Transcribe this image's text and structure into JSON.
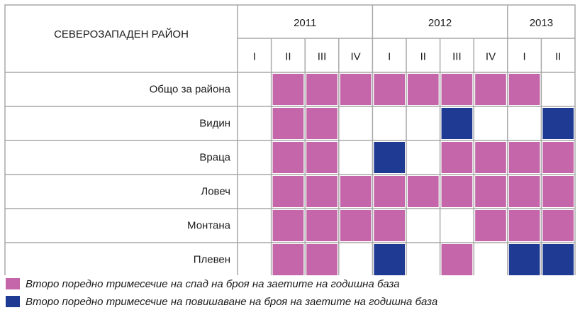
{
  "chart_data": {
    "type": "heatmap",
    "title": "",
    "corner_label": "СЕВЕРОЗАПАДЕН РАЙОН",
    "years": [
      {
        "label": "2011",
        "span": 4
      },
      {
        "label": "2012",
        "span": 4
      },
      {
        "label": "2013",
        "span": 2
      }
    ],
    "quarters": [
      "I",
      "II",
      "III",
      "IV",
      "I",
      "II",
      "III",
      "IV",
      "I",
      "II"
    ],
    "rows": [
      {
        "label": "Общо за района",
        "values": [
          0,
          1,
          1,
          1,
          1,
          1,
          1,
          1,
          1,
          0
        ]
      },
      {
        "label": "Видин",
        "values": [
          0,
          1,
          1,
          0,
          0,
          0,
          2,
          0,
          0,
          2
        ]
      },
      {
        "label": "Враца",
        "values": [
          0,
          1,
          1,
          0,
          2,
          0,
          1,
          1,
          1,
          1
        ]
      },
      {
        "label": "Ловеч",
        "values": [
          0,
          1,
          1,
          1,
          1,
          1,
          1,
          1,
          1,
          1
        ]
      },
      {
        "label": "Монтана",
        "values": [
          0,
          1,
          1,
          1,
          1,
          0,
          0,
          1,
          1,
          1
        ]
      },
      {
        "label": "Плевен",
        "values": [
          0,
          1,
          1,
          0,
          2,
          0,
          1,
          0,
          2,
          2
        ]
      }
    ],
    "value_legend": {
      "0": "",
      "1": "Второ поредно тримесечие на спад на броя на заетите на годишна база",
      "2": "Второ поредно тримесечие на повишаване на броя на заетите на годишна база"
    },
    "colors": {
      "1": "#c466a9",
      "2": "#1f3a93",
      "0": "#ffffff",
      "grid": "#a9a9a9"
    },
    "legend_position": "bottom-left"
  },
  "legend": {
    "items": [
      {
        "value": 1,
        "color": "#c466a9",
        "label": "Второ поредно тримесечие на спад на броя на заетите на годишна база"
      },
      {
        "value": 2,
        "color": "#1f3a93",
        "label": "Второ поредно тримесечие на повишаване на броя на заетите на годишна база"
      }
    ]
  }
}
